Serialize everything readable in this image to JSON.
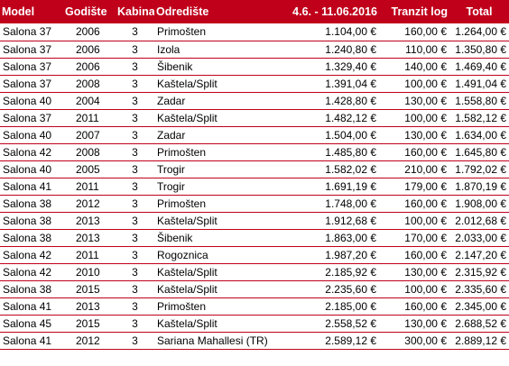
{
  "headers": [
    "Model",
    "Godište",
    "Kabina",
    "Odredište",
    "4.6. - 11.06.2016",
    "Tranzit log",
    "Total"
  ],
  "rows": [
    [
      "Salona 37",
      "2006",
      "3",
      "Primošten",
      "1.104,00 €",
      "160,00 €",
      "1.264,00 €"
    ],
    [
      "Salona 37",
      "2006",
      "3",
      "Izola",
      "1.240,80 €",
      "110,00 €",
      "1.350,80 €"
    ],
    [
      "Salona 37",
      "2006",
      "3",
      "Šibenik",
      "1.329,40 €",
      "140,00 €",
      "1.469,40 €"
    ],
    [
      "Salona 37",
      "2008",
      "3",
      "Kaštela/Split",
      "1.391,04 €",
      "100,00 €",
      "1.491,04 €"
    ],
    [
      "Salona 40",
      "2004",
      "3",
      "Zadar",
      "1.428,80 €",
      "130,00 €",
      "1.558,80 €"
    ],
    [
      "Salona 37",
      "2011",
      "3",
      "Kaštela/Split",
      "1.482,12 €",
      "100,00 €",
      "1.582,12 €"
    ],
    [
      "Salona 40",
      "2007",
      "3",
      "Zadar",
      "1.504,00 €",
      "130,00 €",
      "1.634,00 €"
    ],
    [
      "Salona 42",
      "2008",
      "3",
      "Primošten",
      "1.485,80 €",
      "160,00 €",
      "1.645,80 €"
    ],
    [
      "Salona 40",
      "2005",
      "3",
      "Trogir",
      "1.582,02 €",
      "210,00 €",
      "1.792,02 €"
    ],
    [
      "Salona 41",
      "2011",
      "3",
      "Trogir",
      "1.691,19 €",
      "179,00 €",
      "1.870,19 €"
    ],
    [
      "Salona 38",
      "2012",
      "3",
      "Primošten",
      "1.748,00 €",
      "160,00 €",
      "1.908,00 €"
    ],
    [
      "Salona 38",
      "2013",
      "3",
      "Kaštela/Split",
      "1.912,68 €",
      "100,00 €",
      "2.012,68 €"
    ],
    [
      "Salona 38",
      "2013",
      "3",
      "Šibenik",
      "1.863,00 €",
      "170,00 €",
      "2.033,00 €"
    ],
    [
      "Salona 42",
      "2011",
      "3",
      "Rogoznica",
      "1.987,20 €",
      "160,00 €",
      "2.147,20 €"
    ],
    [
      "Salona 42",
      "2010",
      "3",
      "Kaštela/Split",
      "2.185,92 €",
      "130,00 €",
      "2.315,92 €"
    ],
    [
      "Salona 38",
      "2015",
      "3",
      "Kaštela/Split",
      "2.235,60 €",
      "100,00 €",
      "2.335,60 €"
    ],
    [
      "Salona 41",
      "2013",
      "3",
      "Primošten",
      "2.185,00 €",
      "160,00 €",
      "2.345,00 €"
    ],
    [
      "Salona 45",
      "2015",
      "3",
      "Kaštela/Split",
      "2.558,52 €",
      "130,00 €",
      "2.688,52 €"
    ],
    [
      "Salona 41",
      "2012",
      "3",
      "Sariana Mahallesi (TR)",
      "2.589,12 €",
      "300,00 €",
      "2.889,12 €"
    ]
  ],
  "colors": {
    "header_bg": "#c0001b",
    "header_text": "#ffffff",
    "row_border": "#c0001b"
  }
}
